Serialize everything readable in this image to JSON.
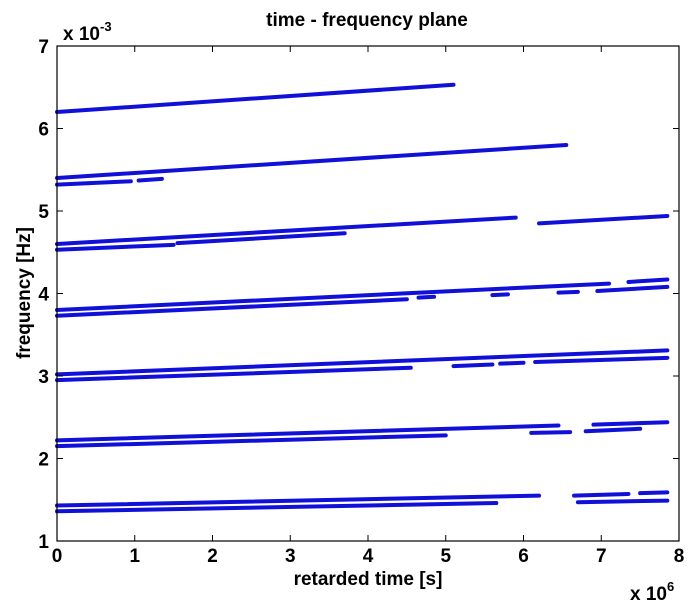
{
  "chart_data": {
    "type": "line",
    "title": "time - frequency plane",
    "xlabel": "retarded time [s]",
    "ylabel": "frequency [Hz]",
    "x_multiplier": {
      "base": "x 10",
      "exponent": "6"
    },
    "y_multiplier": {
      "base": "x 10",
      "exponent": "-3"
    },
    "xlim": [
      0,
      8
    ],
    "ylim": [
      1,
      7
    ],
    "xticks": [
      "0",
      "1",
      "2",
      "3",
      "4",
      "5",
      "6",
      "7",
      "8"
    ],
    "yticks": [
      "1",
      "2",
      "3",
      "4",
      "5",
      "6",
      "7"
    ],
    "grid": false,
    "color": "#1010d8",
    "series": [
      {
        "segments": [
          [
            [
              0,
              6.2
            ],
            [
              5.1,
              6.53
            ]
          ]
        ]
      },
      {
        "segments": [
          [
            [
              0,
              5.4
            ],
            [
              6.55,
              5.8
            ]
          ]
        ]
      },
      {
        "segments": [
          [
            [
              0,
              5.32
            ],
            [
              0.95,
              5.36
            ]
          ],
          [
            [
              1.05,
              5.37
            ],
            [
              1.35,
              5.39
            ]
          ]
        ]
      },
      {
        "segments": [
          [
            [
              0,
              4.6
            ],
            [
              5.9,
              4.92
            ]
          ],
          [
            [
              6.2,
              4.85
            ],
            [
              7.85,
              4.94
            ]
          ]
        ]
      },
      {
        "segments": [
          [
            [
              0,
              4.53
            ],
            [
              1.5,
              4.59
            ]
          ],
          [
            [
              1.55,
              4.61
            ],
            [
              3.7,
              4.73
            ]
          ]
        ]
      },
      {
        "segments": [
          [
            [
              0,
              3.8
            ],
            [
              7.1,
              4.12
            ]
          ],
          [
            [
              7.35,
              4.14
            ],
            [
              7.85,
              4.17
            ]
          ]
        ]
      },
      {
        "segments": [
          [
            [
              0,
              3.73
            ],
            [
              4.5,
              3.93
            ]
          ],
          [
            [
              4.65,
              3.95
            ],
            [
              4.85,
              3.96
            ]
          ],
          [
            [
              5.6,
              3.98
            ],
            [
              5.8,
              3.99
            ]
          ],
          [
            [
              6.45,
              4.01
            ],
            [
              6.7,
              4.02
            ]
          ],
          [
            [
              6.95,
              4.03
            ],
            [
              7.85,
              4.08
            ]
          ]
        ]
      },
      {
        "segments": [
          [
            [
              0,
              3.02
            ],
            [
              7.85,
              3.31
            ]
          ]
        ]
      },
      {
        "segments": [
          [
            [
              0,
              2.95
            ],
            [
              4.55,
              3.1
            ]
          ],
          [
            [
              5.1,
              3.12
            ],
            [
              5.6,
              3.14
            ]
          ],
          [
            [
              5.7,
              3.15
            ],
            [
              6.0,
              3.16
            ]
          ],
          [
            [
              6.15,
              3.17
            ],
            [
              7.85,
              3.22
            ]
          ]
        ]
      },
      {
        "segments": [
          [
            [
              0,
              2.22
            ],
            [
              6.45,
              2.4
            ]
          ],
          [
            [
              6.9,
              2.41
            ],
            [
              7.85,
              2.44
            ]
          ]
        ]
      },
      {
        "segments": [
          [
            [
              0,
              2.15
            ],
            [
              5.0,
              2.28
            ]
          ],
          [
            [
              6.1,
              2.31
            ],
            [
              6.6,
              2.32
            ]
          ],
          [
            [
              6.8,
              2.33
            ],
            [
              7.5,
              2.36
            ]
          ]
        ]
      },
      {
        "segments": [
          [
            [
              0,
              1.43
            ],
            [
              6.2,
              1.55
            ]
          ],
          [
            [
              6.65,
              1.55
            ],
            [
              7.35,
              1.57
            ]
          ],
          [
            [
              7.5,
              1.58
            ],
            [
              7.85,
              1.59
            ]
          ]
        ]
      },
      {
        "segments": [
          [
            [
              0,
              1.36
            ],
            [
              5.65,
              1.46
            ]
          ],
          [
            [
              6.7,
              1.47
            ],
            [
              7.85,
              1.49
            ]
          ]
        ]
      }
    ]
  }
}
